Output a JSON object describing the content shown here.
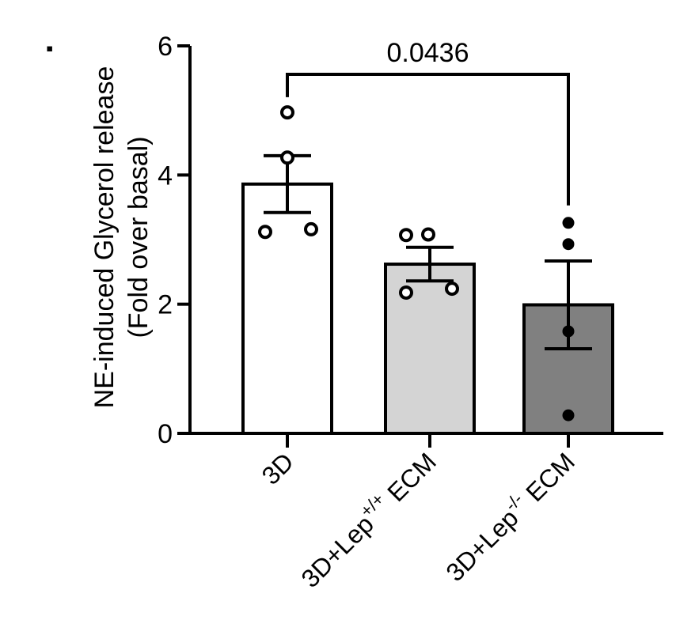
{
  "panel_marker": "▪",
  "chart_data": {
    "type": "bar",
    "categories": [
      {
        "base": "3D",
        "sup": "",
        "suffix": ""
      },
      {
        "base": "3D+Lep",
        "sup": "+/+",
        "suffix": " ECM"
      },
      {
        "base": "3D+Lep",
        "sup": "-/-",
        "suffix": " ECM"
      }
    ],
    "values": [
      3.86,
      2.62,
      1.99
    ],
    "errors": [
      0.44,
      0.26,
      0.68
    ],
    "points": [
      [
        4.97,
        4.27,
        3.12,
        3.16
      ],
      [
        3.07,
        3.08,
        2.18,
        2.24
      ],
      [
        3.26,
        2.93,
        1.58,
        0.28
      ]
    ],
    "bar_colors": [
      "#ffffff",
      "#d4d4d4",
      "#808080"
    ],
    "point_fills": [
      "#ffffff",
      "#ffffff",
      "#000000"
    ],
    "ylabel_line1": "NE-induced Glycerol release",
    "ylabel_line2": "(Fold over basal)",
    "xlabel": "",
    "ylim": [
      0,
      6
    ],
    "yticks": [
      "0",
      "2",
      "4",
      "6"
    ],
    "significance": {
      "from": 0,
      "to": 2,
      "label": "0.0436"
    },
    "grid": false
  }
}
